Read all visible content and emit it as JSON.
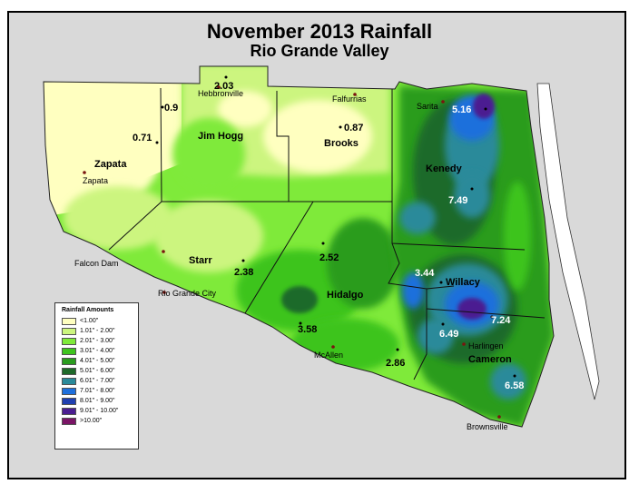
{
  "title": "November 2013 Rainfall",
  "subtitle": "Rio Grande Valley",
  "counties": [
    {
      "name": "Jim Hogg"
    },
    {
      "name": "Brooks"
    },
    {
      "name": "Zapata"
    },
    {
      "name": "Kenedy"
    },
    {
      "name": "Starr"
    },
    {
      "name": "Hidalgo"
    },
    {
      "name": "Willacy"
    },
    {
      "name": "Cameron"
    }
  ],
  "places": [
    {
      "name": "Hebbronville"
    },
    {
      "name": "Falfurrias"
    },
    {
      "name": "Sarita"
    },
    {
      "name": "Zapata"
    },
    {
      "name": "Falcon Dam"
    },
    {
      "name": "Rio Grande City"
    },
    {
      "name": "McAllen"
    },
    {
      "name": "Harlingen"
    },
    {
      "name": "Brownsville"
    }
  ],
  "rainfall_values": [
    "2.03",
    "0.9",
    "0.71",
    "0.87",
    "5.16",
    "7.49",
    "2.52",
    "2.38",
    "3.44",
    "7.24",
    "3.58",
    "6.49",
    "2.86",
    "6.58"
  ],
  "legend": {
    "title": "Rainfall Amounts",
    "items": [
      {
        "label": "<1.00\"",
        "color": "#ffffc0"
      },
      {
        "label": "1.01\" - 2.00\"",
        "color": "#ccf57f"
      },
      {
        "label": "2.01\" - 3.00\"",
        "color": "#7fea3a"
      },
      {
        "label": "3.01\" - 4.00\"",
        "color": "#3ec41e"
      },
      {
        "label": "4.01\" - 5.00\"",
        "color": "#2a9c1e"
      },
      {
        "label": "5.01\" - 6.00\"",
        "color": "#1f6a2a"
      },
      {
        "label": "6.01\" - 7.00\"",
        "color": "#2a8a9a"
      },
      {
        "label": "7.01\" - 8.00\"",
        "color": "#1e6fdc"
      },
      {
        "label": "8.01\" - 9.00\"",
        "color": "#1f3fb0"
      },
      {
        "label": "9.01\" - 10.00\"",
        "color": "#4b1e91"
      },
      {
        "label": ">10.00\"",
        "color": "#7a1566"
      }
    ]
  }
}
